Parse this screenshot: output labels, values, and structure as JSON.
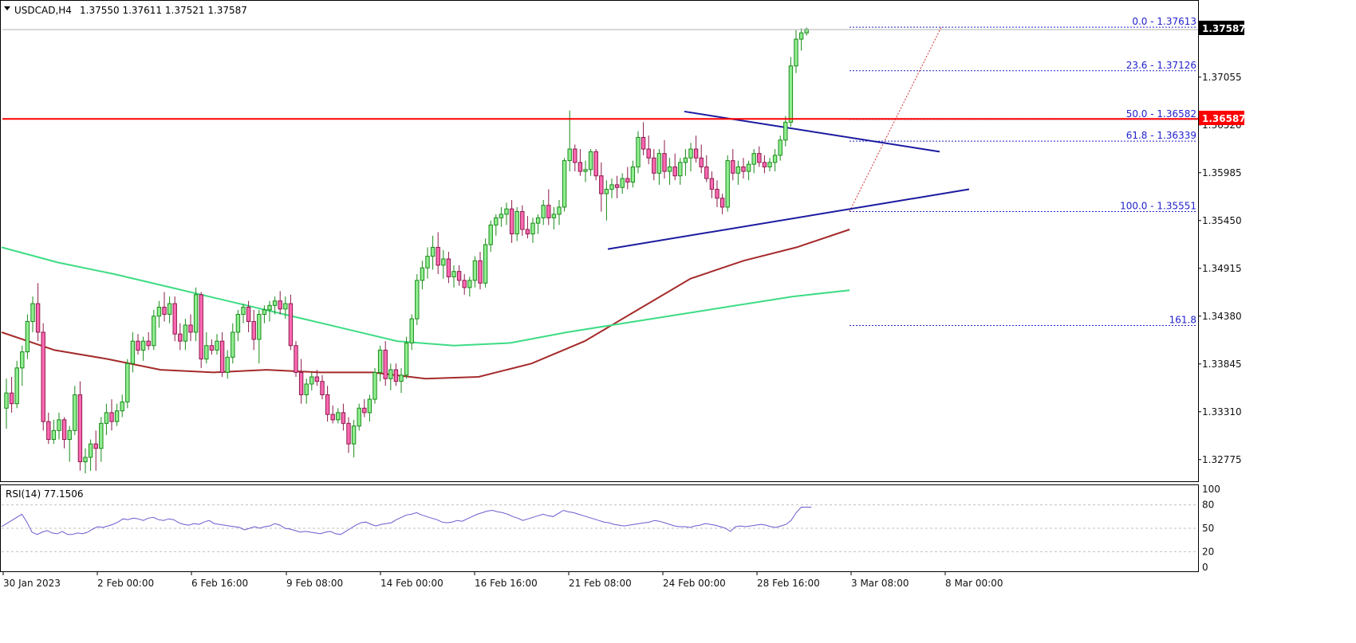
{
  "header": {
    "symbol": "USDCAD,H4",
    "ohlc": "1.37550 1.37611 1.37521 1.37587"
  },
  "chart_data": {
    "type": "candlestick",
    "symbol": "USDCAD",
    "timeframe": "H4",
    "price_range": [
      1.3255,
      1.379
    ],
    "price_ticks": [
      "1.37055",
      "1.36520",
      "1.35985",
      "1.35450",
      "1.34915",
      "1.34380",
      "1.33845",
      "1.33310",
      "1.32775"
    ],
    "time_labels": [
      "30 Jan 2023",
      "2 Feb 00:00",
      "6 Feb 16:00",
      "9 Feb 08:00",
      "14 Feb 00:00",
      "16 Feb 16:00",
      "21 Feb 08:00",
      "24 Feb 00:00",
      "28 Feb 16:00",
      "3 Mar 08:00",
      "8 Mar 00:00"
    ],
    "current_price": "1.37587",
    "horizontal_line": {
      "price": "1.36587",
      "color": "#ff0000"
    },
    "bull_color": "#1a8a1a",
    "bull_fill": "#90ee90",
    "bear_color": "#8b1a4a",
    "bear_fill": "#ff69b4",
    "fibonacci": {
      "color": "#2222cc",
      "levels": [
        {
          "label": "0.0 - 1.37613",
          "price": 1.37613
        },
        {
          "label": "23.6 - 1.37126",
          "price": 1.37126
        },
        {
          "label": "50.0 - 1.36582",
          "price": 1.36582
        },
        {
          "label": "61.8 - 1.36339",
          "price": 1.36339
        },
        {
          "label": "100.0 - 1.35551",
          "price": 1.35551
        },
        {
          "label": "161.8",
          "price": 1.34275
        }
      ]
    },
    "trendlines": {
      "color": "#1a1aa0",
      "upper": [
        [
          1.3667,
          1.3622
        ]
      ],
      "lower": [
        [
          1.3513,
          1.358
        ]
      ]
    },
    "moving_averages": [
      {
        "color": "#a52a2a",
        "values": [
          1.342,
          1.34,
          1.339,
          1.3378,
          1.3375,
          1.3378,
          1.3375,
          1.3375,
          1.3368,
          1.337,
          1.3385,
          1.341,
          1.3445,
          1.348,
          1.35,
          1.3515,
          1.3535
        ]
      },
      {
        "color": "#3ddc84",
        "values": [
          1.3515,
          1.3498,
          1.3485,
          1.347,
          1.3455,
          1.344,
          1.3425,
          1.341,
          1.3405,
          1.3408,
          1.342,
          1.343,
          1.344,
          1.345,
          1.346,
          1.3467
        ]
      }
    ],
    "candles": [
      [
        1.3335,
        1.3368,
        1.3312,
        1.3352
      ],
      [
        1.3352,
        1.337,
        1.333,
        1.334
      ],
      [
        1.334,
        1.3388,
        1.3335,
        1.338
      ],
      [
        1.338,
        1.3405,
        1.336,
        1.3398
      ],
      [
        1.3398,
        1.344,
        1.339,
        1.3432
      ],
      [
        1.3432,
        1.346,
        1.342,
        1.3452
      ],
      [
        1.3452,
        1.3475,
        1.341,
        1.342
      ],
      [
        1.342,
        1.343,
        1.331,
        1.332
      ],
      [
        1.332,
        1.333,
        1.3295,
        1.33
      ],
      [
        1.33,
        1.3322,
        1.3295,
        1.331
      ],
      [
        1.331,
        1.333,
        1.33,
        1.3322
      ],
      [
        1.3322,
        1.3325,
        1.329,
        1.33
      ],
      [
        1.33,
        1.3315,
        1.3275,
        1.331
      ],
      [
        1.331,
        1.336,
        1.3305,
        1.335
      ],
      [
        1.335,
        1.3365,
        1.3265,
        1.3275
      ],
      [
        1.3275,
        1.329,
        1.3262,
        1.328
      ],
      [
        1.328,
        1.33,
        1.3265,
        1.3295
      ],
      [
        1.3295,
        1.331,
        1.3265,
        1.329
      ],
      [
        1.329,
        1.3325,
        1.3275,
        1.3318
      ],
      [
        1.3318,
        1.334,
        1.3305,
        1.333
      ],
      [
        1.333,
        1.3345,
        1.331,
        1.332
      ],
      [
        1.332,
        1.334,
        1.3315,
        1.3332
      ],
      [
        1.3332,
        1.335,
        1.3325,
        1.3342
      ],
      [
        1.3342,
        1.339,
        1.3335,
        1.3385
      ],
      [
        1.3385,
        1.342,
        1.3375,
        1.341
      ],
      [
        1.341,
        1.3418,
        1.3395,
        1.34
      ],
      [
        1.34,
        1.3415,
        1.3388,
        1.341
      ],
      [
        1.341,
        1.342,
        1.34,
        1.3405
      ],
      [
        1.3405,
        1.3445,
        1.34,
        1.3438
      ],
      [
        1.3438,
        1.3455,
        1.3425,
        1.3448
      ],
      [
        1.3448,
        1.3465,
        1.3432,
        1.344
      ],
      [
        1.344,
        1.346,
        1.343,
        1.3452
      ],
      [
        1.3452,
        1.346,
        1.341,
        1.3418
      ],
      [
        1.3418,
        1.343,
        1.34,
        1.341
      ],
      [
        1.341,
        1.3435,
        1.34,
        1.3428
      ],
      [
        1.3428,
        1.344,
        1.341,
        1.342
      ],
      [
        1.342,
        1.347,
        1.341,
        1.3462
      ],
      [
        1.3462,
        1.3465,
        1.338,
        1.339
      ],
      [
        1.339,
        1.342,
        1.3385,
        1.3405
      ],
      [
        1.3405,
        1.3412,
        1.3395,
        1.34
      ],
      [
        1.34,
        1.3418,
        1.3395,
        1.341
      ],
      [
        1.341,
        1.342,
        1.337,
        1.3375
      ],
      [
        1.3375,
        1.34,
        1.3368,
        1.3392
      ],
      [
        1.3392,
        1.343,
        1.3385,
        1.342
      ],
      [
        1.342,
        1.3445,
        1.341,
        1.344
      ],
      [
        1.344,
        1.3452,
        1.343,
        1.3448
      ],
      [
        1.3448,
        1.3455,
        1.342,
        1.3432
      ],
      [
        1.3432,
        1.3445,
        1.34,
        1.3412
      ],
      [
        1.3412,
        1.3445,
        1.3385,
        1.344
      ],
      [
        1.344,
        1.345,
        1.343,
        1.3445
      ],
      [
        1.3445,
        1.3455,
        1.3432,
        1.345
      ],
      [
        1.345,
        1.346,
        1.344,
        1.3455
      ],
      [
        1.3455,
        1.3466,
        1.344,
        1.3446
      ],
      [
        1.3446,
        1.346,
        1.3435,
        1.3452
      ],
      [
        1.3452,
        1.3462,
        1.34,
        1.3405
      ],
      [
        1.3405,
        1.341,
        1.337,
        1.3375
      ],
      [
        1.3375,
        1.339,
        1.334,
        1.335
      ],
      [
        1.335,
        1.3368,
        1.334,
        1.3362
      ],
      [
        1.3362,
        1.3375,
        1.3355,
        1.337
      ],
      [
        1.337,
        1.3378,
        1.336,
        1.3365
      ],
      [
        1.3365,
        1.3372,
        1.3345,
        1.335
      ],
      [
        1.335,
        1.336,
        1.332,
        1.3328
      ],
      [
        1.3328,
        1.3338,
        1.3318,
        1.3322
      ],
      [
        1.3322,
        1.3335,
        1.3318,
        1.333
      ],
      [
        1.333,
        1.334,
        1.331,
        1.3318
      ],
      [
        1.3318,
        1.3325,
        1.3285,
        1.3295
      ],
      [
        1.3295,
        1.3322,
        1.328,
        1.3315
      ],
      [
        1.3315,
        1.334,
        1.331,
        1.3335
      ],
      [
        1.3335,
        1.3345,
        1.3325,
        1.333
      ],
      [
        1.333,
        1.335,
        1.332,
        1.3345
      ],
      [
        1.3345,
        1.338,
        1.334,
        1.3375
      ],
      [
        1.3375,
        1.3405,
        1.3365,
        1.34
      ],
      [
        1.34,
        1.341,
        1.336,
        1.3368
      ],
      [
        1.3368,
        1.3385,
        1.3355,
        1.3378
      ],
      [
        1.3378,
        1.3385,
        1.336,
        1.3365
      ],
      [
        1.3365,
        1.338,
        1.3352,
        1.3372
      ],
      [
        1.3372,
        1.3415,
        1.3368,
        1.3408
      ],
      [
        1.3408,
        1.344,
        1.34,
        1.3435
      ],
      [
        1.3435,
        1.3485,
        1.3428,
        1.3478
      ],
      [
        1.3478,
        1.35,
        1.3468,
        1.3492
      ],
      [
        1.3492,
        1.3515,
        1.348,
        1.3505
      ],
      [
        1.3505,
        1.3528,
        1.349,
        1.3515
      ],
      [
        1.3515,
        1.3532,
        1.3485,
        1.3495
      ],
      [
        1.3495,
        1.3512,
        1.348,
        1.3502
      ],
      [
        1.3502,
        1.351,
        1.3475,
        1.3482
      ],
      [
        1.3482,
        1.3495,
        1.347,
        1.3488
      ],
      [
        1.3488,
        1.3495,
        1.3472,
        1.3478
      ],
      [
        1.3478,
        1.3485,
        1.3462,
        1.347
      ],
      [
        1.347,
        1.3482,
        1.346,
        1.3478
      ],
      [
        1.3478,
        1.3505,
        1.347,
        1.35
      ],
      [
        1.35,
        1.351,
        1.3468,
        1.3475
      ],
      [
        1.3475,
        1.3525,
        1.347,
        1.3518
      ],
      [
        1.3518,
        1.3545,
        1.351,
        1.354
      ],
      [
        1.354,
        1.3552,
        1.3528,
        1.3548
      ],
      [
        1.3548,
        1.356,
        1.3538,
        1.3552
      ],
      [
        1.3552,
        1.3565,
        1.354,
        1.3558
      ],
      [
        1.3558,
        1.3568,
        1.352,
        1.353
      ],
      [
        1.353,
        1.356,
        1.3522,
        1.3555
      ],
      [
        1.3555,
        1.3562,
        1.3528,
        1.3535
      ],
      [
        1.3535,
        1.355,
        1.3525,
        1.353
      ],
      [
        1.353,
        1.3548,
        1.352,
        1.3542
      ],
      [
        1.3542,
        1.3552,
        1.353,
        1.3548
      ],
      [
        1.3548,
        1.3568,
        1.354,
        1.3562
      ],
      [
        1.3562,
        1.358,
        1.354,
        1.3548
      ],
      [
        1.3548,
        1.356,
        1.3535,
        1.3552
      ],
      [
        1.3552,
        1.3568,
        1.354,
        1.356
      ],
      [
        1.356,
        1.3615,
        1.3555,
        1.3612
      ],
      [
        1.3612,
        1.3668,
        1.36,
        1.3625
      ],
      [
        1.3625,
        1.363,
        1.36,
        1.361
      ],
      [
        1.361,
        1.3625,
        1.3595,
        1.36
      ],
      [
        1.36,
        1.3612,
        1.3588,
        1.3602
      ],
      [
        1.3602,
        1.3625,
        1.3595,
        1.3622
      ],
      [
        1.3622,
        1.3625,
        1.359,
        1.3595
      ],
      [
        1.3595,
        1.361,
        1.3555,
        1.3575
      ],
      [
        1.3575,
        1.359,
        1.3545,
        1.358
      ],
      [
        1.358,
        1.3592,
        1.357,
        1.3585
      ],
      [
        1.3585,
        1.3595,
        1.357,
        1.3582
      ],
      [
        1.3582,
        1.3598,
        1.3575,
        1.3592
      ],
      [
        1.3592,
        1.3605,
        1.358,
        1.3588
      ],
      [
        1.3588,
        1.3612,
        1.3582,
        1.3605
      ],
      [
        1.3605,
        1.3645,
        1.3598,
        1.3638
      ],
      [
        1.3638,
        1.3655,
        1.3618,
        1.3625
      ],
      [
        1.3625,
        1.364,
        1.3608,
        1.3615
      ],
      [
        1.3615,
        1.3625,
        1.359,
        1.3598
      ],
      [
        1.3598,
        1.3625,
        1.3585,
        1.362
      ],
      [
        1.362,
        1.3635,
        1.3592,
        1.36
      ],
      [
        1.36,
        1.3615,
        1.3585,
        1.3605
      ],
      [
        1.3605,
        1.362,
        1.359,
        1.3595
      ],
      [
        1.3595,
        1.3615,
        1.3585,
        1.361
      ],
      [
        1.361,
        1.3625,
        1.3595,
        1.3615
      ],
      [
        1.3615,
        1.3632,
        1.36,
        1.3625
      ],
      [
        1.3625,
        1.364,
        1.361,
        1.3615
      ],
      [
        1.3615,
        1.363,
        1.3598,
        1.3605
      ],
      [
        1.3605,
        1.3618,
        1.3588,
        1.3592
      ],
      [
        1.3592,
        1.36,
        1.357,
        1.358
      ],
      [
        1.358,
        1.359,
        1.356,
        1.357
      ],
      [
        1.357,
        1.3575,
        1.3552,
        1.356
      ],
      [
        1.356,
        1.3618,
        1.3555,
        1.3612
      ],
      [
        1.3612,
        1.3625,
        1.359,
        1.3598
      ],
      [
        1.3598,
        1.3612,
        1.3585,
        1.3605
      ],
      [
        1.3605,
        1.3615,
        1.3592,
        1.36
      ],
      [
        1.36,
        1.3612,
        1.359,
        1.3608
      ],
      [
        1.3608,
        1.3625,
        1.3598,
        1.362
      ],
      [
        1.362,
        1.3628,
        1.3605,
        1.361
      ],
      [
        1.361,
        1.3618,
        1.3598,
        1.3605
      ],
      [
        1.3605,
        1.3615,
        1.36,
        1.361
      ],
      [
        1.361,
        1.3625,
        1.36,
        1.3618
      ],
      [
        1.3618,
        1.364,
        1.3612,
        1.3635
      ],
      [
        1.3635,
        1.3662,
        1.3628,
        1.3655
      ],
      [
        1.3655,
        1.3728,
        1.365,
        1.3718
      ],
      [
        1.3718,
        1.3758,
        1.371,
        1.3748
      ],
      [
        1.3748,
        1.376,
        1.3735,
        1.3755
      ],
      [
        1.3755,
        1.3761,
        1.3752,
        1.3759
      ]
    ],
    "rsi": {
      "label": "RSI(14) 77.1506",
      "range": [
        0,
        100
      ],
      "ticks": [
        "100",
        "80",
        "50",
        "20",
        "0"
      ],
      "levels": [
        80,
        50,
        20
      ],
      "color": "#6a5acd",
      "values": [
        52,
        56,
        60,
        64,
        68,
        58,
        45,
        42,
        45,
        47,
        44,
        43,
        46,
        42,
        42,
        44,
        43,
        45,
        49,
        52,
        51,
        53,
        55,
        58,
        62,
        61,
        63,
        62,
        60,
        63,
        64,
        61,
        60,
        62,
        61,
        57,
        55,
        54,
        56,
        55,
        58,
        60,
        56,
        55,
        54,
        53,
        52,
        51,
        48,
        50,
        52,
        50,
        52,
        53,
        56,
        54,
        50,
        49,
        47,
        45,
        46,
        45,
        44,
        43,
        45,
        46,
        43,
        42,
        46,
        50,
        54,
        57,
        58,
        55,
        53,
        55,
        56,
        57,
        61,
        64,
        67,
        68,
        70,
        67,
        65,
        63,
        61,
        58,
        57,
        58,
        60,
        59,
        62,
        65,
        68,
        70,
        72,
        73,
        71,
        70,
        68,
        65,
        63,
        60,
        62,
        64,
        66,
        68,
        66,
        65,
        69,
        73,
        71,
        70,
        68,
        66,
        64,
        62,
        60,
        58,
        57,
        55,
        54,
        53,
        54,
        55,
        56,
        57,
        58,
        60,
        59,
        57,
        55,
        53,
        52,
        52,
        51,
        53,
        54,
        56,
        55,
        54,
        52,
        50,
        46,
        52,
        53,
        52,
        53,
        54,
        55,
        54,
        52,
        51,
        53,
        55,
        60,
        70,
        77,
        77,
        77
      ]
    }
  }
}
